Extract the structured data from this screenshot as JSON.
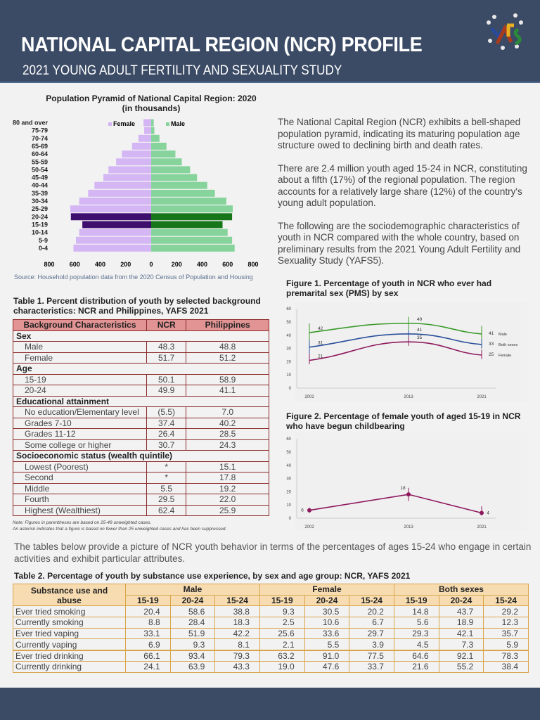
{
  "header": {
    "title": "NATIONAL CAPITAL REGION (NCR) PROFILE",
    "subtitle": "2021 YOUNG ADULT FERTILITY AND SEXUALITY STUDY",
    "logo_text": "YAFS"
  },
  "colors": {
    "header_bg": "#3b4b65",
    "female": "#d5b6f4",
    "female_highlight": "#3f0f6e",
    "male": "#86d49b",
    "male_highlight": "#17761a",
    "table1_header": "#e29393",
    "table2_header": "#f7dcb1",
    "fig_male": "#3a9a2a",
    "fig_both": "#2a4f9a",
    "fig_female": "#8e1a5e"
  },
  "intro": {
    "paragraphs": [
      "The National Capital Region (NCR) exhibits a bell-shaped population pyramid, indicating its maturing population age structure owed to declining birth and death rates.",
      "There are 2.4 million youth aged 15-24 in NCR, constituting about a fifth (17%) of the regional population. The region accounts for a relatively large share (12%) of the country's young adult population.",
      "The following are the sociodemographic characteristics of youth in NCR compared with the whole country, based on preliminary results from the 2021 Young Adult Fertility and Sexuality Study (YAFS5)."
    ]
  },
  "chart_data": [
    {
      "type": "bar",
      "orientation": "horizontal-pyramid",
      "title": "Population Pyramid of National Capital Region: 2020",
      "subtitle": "(in thousands)",
      "categories": [
        "80 and over",
        "75-79",
        "70-74",
        "65-69",
        "60-64",
        "55-59",
        "50-54",
        "45-49",
        "40-44",
        "35-39",
        "30-34",
        "25-29",
        "20-24",
        "15-19",
        "10-14",
        "5-9",
        "0-4"
      ],
      "series": [
        {
          "name": "Female",
          "values": [
            60,
            55,
            100,
            150,
            230,
            275,
            335,
            375,
            445,
            495,
            565,
            635,
            630,
            540,
            565,
            590,
            610
          ]
        },
        {
          "name": "Male",
          "values": [
            20,
            25,
            65,
            120,
            190,
            240,
            305,
            360,
            440,
            500,
            590,
            640,
            635,
            560,
            600,
            635,
            655
          ]
        }
      ],
      "highlight": [
        "20-24",
        "15-19"
      ],
      "xticks": [
        800,
        600,
        400,
        200,
        0,
        200,
        400,
        600,
        800
      ],
      "xlim": [
        -800,
        800
      ],
      "legend": "top",
      "source": "Source: Household population data from the 2020 Census of Population and Housing"
    },
    {
      "type": "line",
      "title": "Figure 1. Percentage of youth in NCR who ever had premarital sex (PMS) by sex",
      "x": [
        "2002",
        "2013",
        "2021"
      ],
      "ylim": [
        0,
        60
      ],
      "yticks": [
        0,
        10,
        20,
        30,
        40,
        50,
        60
      ],
      "series": [
        {
          "name": "Male",
          "values": [
            42,
            49,
            41
          ],
          "err": [
            [
              35,
              49
            ],
            [
              44,
              54
            ],
            [
              36,
              47
            ]
          ]
        },
        {
          "name": "Both sexes",
          "values": [
            31,
            41,
            33
          ],
          "err": [
            [
              26,
              36
            ],
            [
              38,
              44
            ],
            [
              30,
              37
            ]
          ]
        },
        {
          "name": "Female",
          "values": [
            21,
            35,
            25
          ],
          "err": [
            [
              18,
              26
            ],
            [
              32,
              39
            ],
            [
              22,
              29
            ]
          ]
        }
      ]
    },
    {
      "type": "line",
      "title": "Figure 2. Percentage of female youth of aged 15-19 in NCR who have begun childbearing",
      "x": [
        "2002",
        "2013",
        "2021"
      ],
      "ylim": [
        0,
        60
      ],
      "yticks": [
        0,
        10,
        20,
        30,
        40,
        50,
        60
      ],
      "series": [
        {
          "values": [
            6,
            18,
            4
          ],
          "err": [
            [
              4,
              8
            ],
            [
              13,
              23
            ],
            [
              2,
              9
            ]
          ]
        }
      ]
    }
  ],
  "table1": {
    "title": "Table 1. Percent distribution of youth by selected background characteristics: NCR and Philippines, YAFS 2021",
    "headers": [
      "Background Characteristics",
      "NCR",
      "Philippines"
    ],
    "sections": [
      {
        "name": "Sex",
        "rows": [
          [
            "Male",
            "48.3",
            "48.8"
          ],
          [
            "Female",
            "51.7",
            "51.2"
          ]
        ]
      },
      {
        "name": "Age",
        "rows": [
          [
            "15-19",
            "50.1",
            "58.9"
          ],
          [
            "20-24",
            "49.9",
            "41.1"
          ]
        ]
      },
      {
        "name": "Educational attainment",
        "rows": [
          [
            "No education/Elementary level",
            "(5.5)",
            "7.0"
          ],
          [
            "Grades 7-10",
            "37.4",
            "40.2"
          ],
          [
            "Grades 11-12",
            "26.4",
            "28.5"
          ],
          [
            "Some college or higher",
            "30.7",
            "24.3"
          ]
        ]
      },
      {
        "name": "Socioeconomic status (wealth quintile)",
        "rows": [
          [
            "Lowest (Poorest)",
            "*",
            "15.1"
          ],
          [
            "Second",
            "*",
            "17.8"
          ],
          [
            "Middle",
            "5.5",
            "19.2"
          ],
          [
            "Fourth",
            "29.5",
            "22.0"
          ],
          [
            "Highest (Wealthiest)",
            "62.4",
            "25.9"
          ]
        ]
      }
    ],
    "notes": [
      "Note: Figures in parentheses are based on 25-49 unweighted cases.",
      "An asterisk indicates that a figure is based on fewer than 25 unweighted cases and has been suppressed."
    ]
  },
  "paragraph": "The tables below provide a picture of NCR youth behavior in terms of the percentages of ages 15-24 who engage in certain activities and exhibit particular attributes.",
  "table2": {
    "title": "Table 2. Percentage of youth by substance use experience, by sex and age group: NCR, YAFS 2021",
    "row_header": "Substance use and abuse",
    "groups": [
      "Male",
      "Female",
      "Both sexes"
    ],
    "ages": [
      "15-19",
      "20-24",
      "15-24"
    ],
    "rows": [
      [
        "Ever tried smoking",
        "20.4",
        "58.6",
        "38.8",
        "9.3",
        "30.5",
        "20.2",
        "14.8",
        "43.7",
        "29.2"
      ],
      [
        "Currently smoking",
        "8.8",
        "28.4",
        "18.3",
        "2.5",
        "10.6",
        "6.7",
        "5.6",
        "18.9",
        "12.3"
      ],
      [
        "Ever tried vaping",
        "33.1",
        "51.9",
        "42.2",
        "25.6",
        "33.6",
        "29.7",
        "29.3",
        "42.1",
        "35.7"
      ],
      [
        "Currently vaping",
        "6.9",
        "9.3",
        "8.1",
        "2.1",
        "5.5",
        "3.9",
        "4.5",
        "7.3",
        "5.9"
      ],
      [
        "Ever tried drinking",
        "66.1",
        "93.4",
        "79.3",
        "63.2",
        "91.0",
        "77.5",
        "64.6",
        "92.1",
        "78.3"
      ],
      [
        "Currently drinking",
        "24.1",
        "63.9",
        "43.3",
        "19.0",
        "47.6",
        "33.7",
        "21.6",
        "55.2",
        "38.4"
      ]
    ]
  }
}
